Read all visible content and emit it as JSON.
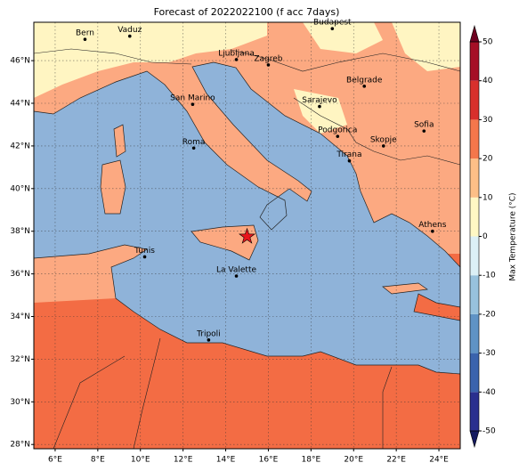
{
  "title": "Forecast of 2022022100 (f acc 7days)",
  "map": {
    "xlim": [
      5,
      25
    ],
    "ylim": [
      27.8,
      47.8
    ],
    "grid": true,
    "xticks": [
      {
        "value": 6,
        "label": "6°E"
      },
      {
        "value": 8,
        "label": "8°E"
      },
      {
        "value": 10,
        "label": "10°E"
      },
      {
        "value": 12,
        "label": "12°E"
      },
      {
        "value": 14,
        "label": "14°E"
      },
      {
        "value": 16,
        "label": "16°E"
      },
      {
        "value": 18,
        "label": "18°E"
      },
      {
        "value": 20,
        "label": "20°E"
      },
      {
        "value": 22,
        "label": "22°E"
      },
      {
        "value": 24,
        "label": "24°E"
      }
    ],
    "yticks": [
      {
        "value": 28,
        "label": "28°N"
      },
      {
        "value": 30,
        "label": "30°N"
      },
      {
        "value": 32,
        "label": "32°N"
      },
      {
        "value": 34,
        "label": "34°N"
      },
      {
        "value": 36,
        "label": "36°N"
      },
      {
        "value": 38,
        "label": "38°N"
      },
      {
        "value": 40,
        "label": "40°N"
      },
      {
        "value": 42,
        "label": "42°N"
      },
      {
        "value": 44,
        "label": "44°N"
      },
      {
        "value": 46,
        "label": "46°N"
      }
    ]
  },
  "cities": [
    {
      "name": "Bern",
      "lon": 7.4,
      "lat": 47.0
    },
    {
      "name": "Vaduz",
      "lon": 9.5,
      "lat": 47.15
    },
    {
      "name": "Budapest",
      "lon": 19.0,
      "lat": 47.5
    },
    {
      "name": "Ljubljana",
      "lon": 14.5,
      "lat": 46.05
    },
    {
      "name": "Zagreb",
      "lon": 16.0,
      "lat": 45.8
    },
    {
      "name": "Belgrade",
      "lon": 20.5,
      "lat": 44.8
    },
    {
      "name": "Sarajevo",
      "lon": 18.4,
      "lat": 43.85
    },
    {
      "name": "San Marino",
      "lon": 12.45,
      "lat": 43.95
    },
    {
      "name": "Sofia",
      "lon": 23.3,
      "lat": 42.7
    },
    {
      "name": "Podgorica",
      "lon": 19.25,
      "lat": 42.45
    },
    {
      "name": "Skopje",
      "lon": 21.4,
      "lat": 42.0
    },
    {
      "name": "Roma",
      "lon": 12.5,
      "lat": 41.9
    },
    {
      "name": "Tirana",
      "lon": 19.8,
      "lat": 41.3
    },
    {
      "name": "Athens",
      "lon": 23.7,
      "lat": 38.0
    },
    {
      "name": "Tunis",
      "lon": 10.2,
      "lat": 36.8
    },
    {
      "name": "La Valette",
      "lon": 14.5,
      "lat": 35.9
    },
    {
      "name": "Tripoli",
      "lon": 13.2,
      "lat": 32.9
    }
  ],
  "marker": {
    "lon": 15.0,
    "lat": 37.75,
    "color": "#e8141c"
  },
  "colorbar": {
    "label": "Max Temperature (°C)",
    "lim": [
      -50,
      50
    ],
    "ticks": [
      -50,
      -40,
      -30,
      -20,
      -10,
      0,
      10,
      20,
      30,
      40,
      50
    ],
    "colors": [
      "#2a2f8f",
      "#3a63ad",
      "#5f93c5",
      "#98c2dd",
      "#dcf0f6",
      "#fff8c4",
      "#fdbf87",
      "#f4774b",
      "#d8302c",
      "#a50f26"
    ],
    "extend_colors": [
      "#151a60",
      "#6e0020"
    ]
  }
}
